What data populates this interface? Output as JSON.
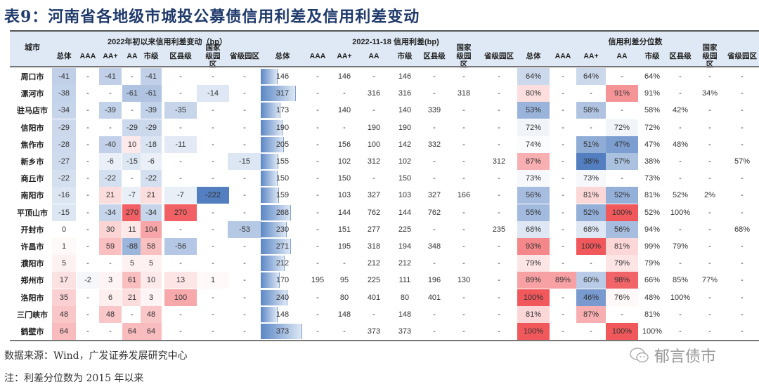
{
  "title": "表9：河南省各地级市城投公募债信用利差及信用利差变动",
  "header": {
    "city_label": "城市",
    "groups": [
      "2022年初以来信用利差变动（bp）",
      "2022-11-18 信用利差(bp)",
      "信用利差分位数"
    ],
    "subcols": [
      "总体",
      "AAA",
      "AA+",
      "AA",
      "市级",
      "区县级",
      "国家级园区",
      "省级园区"
    ]
  },
  "rows": [
    {
      "city": "周口市",
      "change": [
        "-41",
        "-",
        "-41",
        "-",
        "-41",
        "-",
        "-",
        "-"
      ],
      "spread": [
        "146",
        "-",
        "146",
        "-",
        "146",
        "-",
        "-",
        "-"
      ],
      "pct": [
        "64%",
        "-",
        "64%",
        "-",
        "64%",
        "-",
        "-",
        "-"
      ]
    },
    {
      "city": "漯河市",
      "change": [
        "-38",
        "-",
        "-",
        "-61",
        "-61",
        "-",
        "-14",
        "-"
      ],
      "spread": [
        "317",
        "-",
        "-",
        "316",
        "316",
        "-",
        "318",
        "-"
      ],
      "pct": [
        "80%",
        "-",
        "-",
        "91%",
        "91%",
        "-",
        "34%",
        "-"
      ]
    },
    {
      "city": "驻马店市",
      "change": [
        "-34",
        "-",
        "-39",
        "-",
        "-39",
        "-35",
        "-",
        "-"
      ],
      "spread": [
        "173",
        "-",
        "140",
        "-",
        "140",
        "339",
        "-",
        "-"
      ],
      "pct": [
        "53%",
        "-",
        "58%",
        "-",
        "58%",
        "42%",
        "-",
        "-"
      ]
    },
    {
      "city": "信阳市",
      "change": [
        "-29",
        "-",
        "-",
        "-29",
        "-29",
        "-",
        "-",
        "-"
      ],
      "spread": [
        "190",
        "-",
        "-",
        "190",
        "190",
        "-",
        "-",
        "-"
      ],
      "pct": [
        "72%",
        "-",
        "-",
        "72%",
        "72%",
        "-",
        "-",
        "-"
      ]
    },
    {
      "city": "焦作市",
      "change": [
        "-28",
        "-",
        "-40",
        "10",
        "-18",
        "-11",
        "-",
        "-"
      ],
      "spread": [
        "205",
        "-",
        "156",
        "100",
        "142",
        "332",
        "-",
        "-"
      ],
      "pct": [
        "74%",
        "-",
        "51%",
        "47%",
        "47%",
        "48%",
        "-",
        "-"
      ]
    },
    {
      "city": "新乡市",
      "change": [
        "-27",
        "-",
        "-6",
        "-15",
        "-6",
        "-",
        "-",
        "-15"
      ],
      "spread": [
        "155",
        "-",
        "102",
        "312",
        "102",
        "-",
        "-",
        "312"
      ],
      "pct": [
        "87%",
        "-",
        "38%",
        "57%",
        "38%",
        "-",
        "-",
        "57%"
      ]
    },
    {
      "city": "商丘市",
      "change": [
        "-22",
        "-",
        "-22",
        "-",
        "-22",
        "-",
        "-",
        "-"
      ],
      "spread": [
        "150",
        "-",
        "150",
        "-",
        "150",
        "-",
        "-",
        "-"
      ],
      "pct": [
        "73%",
        "-",
        "73%",
        "-",
        "73%",
        "-",
        "-",
        "-"
      ]
    },
    {
      "city": "南阳市",
      "change": [
        "-16",
        "-",
        "21",
        "-7",
        "21",
        "-7",
        "-222",
        "-"
      ],
      "spread": [
        "159",
        "-",
        "103",
        "327",
        "103",
        "327",
        "166",
        "-"
      ],
      "pct": [
        "56%",
        "-",
        "81%",
        "52%",
        "81%",
        "52%",
        "2%",
        "-"
      ]
    },
    {
      "city": "平顶山市",
      "change": [
        "-15",
        "-",
        "-34",
        "270",
        "-34",
        "270",
        "-",
        "-"
      ],
      "spread": [
        "268",
        "-",
        "144",
        "762",
        "144",
        "762",
        "-",
        "-"
      ],
      "pct": [
        "55%",
        "-",
        "52%",
        "100%",
        "52%",
        "100%",
        "-",
        "-"
      ]
    },
    {
      "city": "开封市",
      "change": [
        "0",
        "-",
        "30",
        "11",
        "104",
        "-",
        "-",
        "-53"
      ],
      "spread": [
        "230",
        "-",
        "151",
        "277",
        "225",
        "-",
        "-",
        "235"
      ],
      "pct": [
        "68%",
        "-",
        "68%",
        "56%",
        "94%",
        "-",
        "-",
        "68%"
      ]
    },
    {
      "city": "许昌市",
      "change": [
        "1",
        "-",
        "59",
        "-88",
        "58",
        "-56",
        "-",
        "-"
      ],
      "spread": [
        "271",
        "-",
        "195",
        "318",
        "194",
        "348",
        "-",
        "-"
      ],
      "pct": [
        "93%",
        "-",
        "100%",
        "81%",
        "99%",
        "79%",
        "-",
        "-"
      ]
    },
    {
      "city": "濮阳市",
      "change": [
        "5",
        "-",
        "-",
        "5",
        "5",
        "-",
        "-",
        "-"
      ],
      "spread": [
        "212",
        "-",
        "-",
        "212",
        "212",
        "-",
        "-",
        "-"
      ],
      "pct": [
        "79%",
        "-",
        "-",
        "79%",
        "79%",
        "-",
        "-",
        "-"
      ]
    },
    {
      "city": "郑州市",
      "change": [
        "17",
        "-2",
        "3",
        "61",
        "10",
        "13",
        "1",
        "-"
      ],
      "spread": [
        "170",
        "195",
        "95",
        "225",
        "111",
        "196",
        "130",
        "-"
      ],
      "pct": [
        "89%",
        "89%",
        "60%",
        "98%",
        "66%",
        "85%",
        "77%",
        "-"
      ]
    },
    {
      "city": "洛阳市",
      "change": [
        "35",
        "-",
        "6",
        "21",
        "3",
        "100",
        "-",
        "-"
      ],
      "spread": [
        "240",
        "-",
        "80",
        "401",
        "80",
        "401",
        "-",
        "-"
      ],
      "pct": [
        "100%",
        "-",
        "46%",
        "76%",
        "48%",
        "100%",
        "-",
        "-"
      ]
    },
    {
      "city": "三门峡市",
      "change": [
        "48",
        "-",
        "48",
        "-",
        "48",
        "-",
        "-",
        "-"
      ],
      "spread": [
        "148",
        "-",
        "148",
        "-",
        "148",
        "-",
        "-",
        "-"
      ],
      "pct": [
        "81%",
        "-",
        "87%",
        "-",
        "81%",
        "-",
        "-",
        "-"
      ]
    },
    {
      "city": "鹤壁市",
      "change": [
        "64",
        "-",
        "-",
        "64",
        "64",
        "-",
        "-",
        "-"
      ],
      "spread": [
        "373",
        "-",
        "-",
        "373",
        "373",
        "-",
        "-",
        "-"
      ],
      "pct": [
        "100%",
        "-",
        "-",
        "100%",
        "100%",
        "-",
        "-",
        "-"
      ]
    }
  ],
  "colors": {
    "header_bg": "#dfe9f5",
    "title": "#1f3a6b",
    "neg_strong": "#4a78bd",
    "pos_strong": "#f0585c",
    "bar_start": "#5b87c5",
    "bar_end": "#dde7f4"
  },
  "footer": {
    "source": "数据来源：Wind，广发证券发展研究中心",
    "note": "注：利差分位数为 2015 年以来"
  },
  "watermark": {
    "text": "郁言债市",
    "icon": "wechat-icon"
  }
}
